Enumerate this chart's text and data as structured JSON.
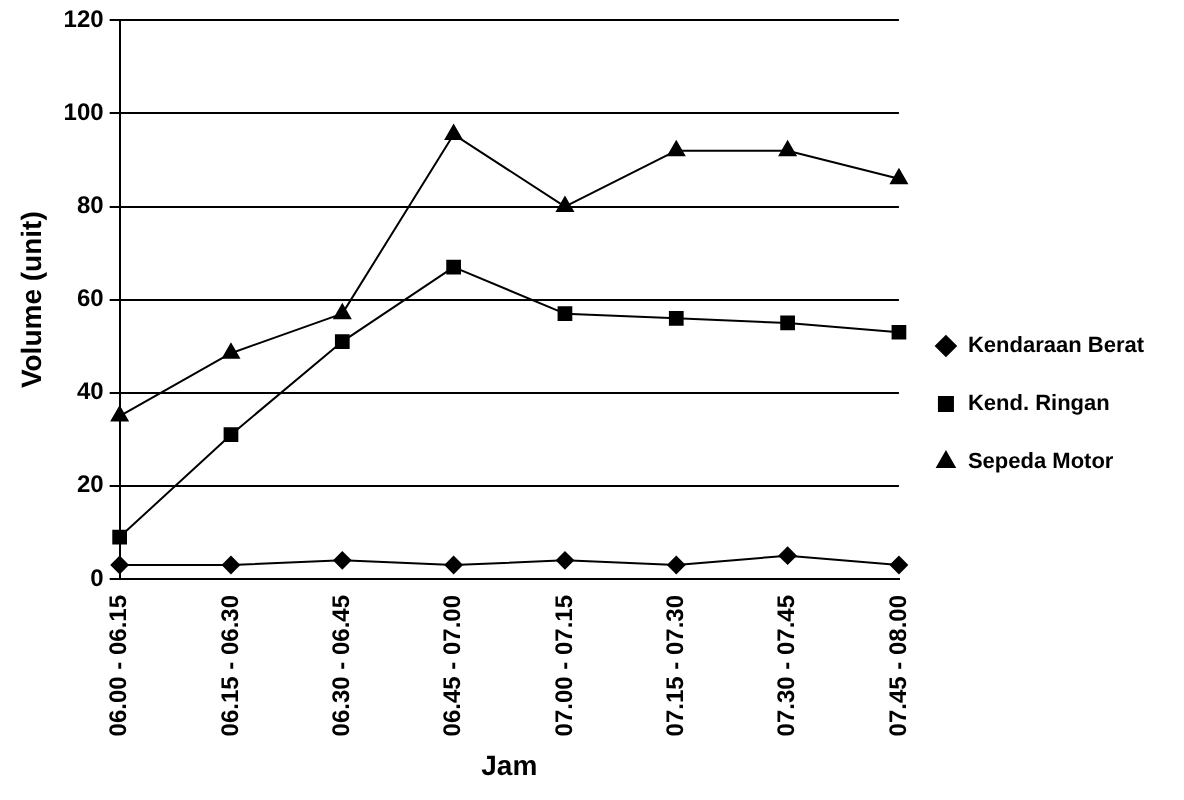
{
  "chart_data": {
    "type": "line",
    "xlabel": "Jam",
    "ylabel": "Volume (unit)",
    "categories": [
      "06.00 - 06.15",
      "06.15 - 06.30",
      "06.30 - 06.45",
      "06.45 - 07.00",
      "07.00 - 07.15",
      "07.15 - 07.30",
      "07.30 - 07.45",
      "07.45 - 08.00"
    ],
    "series": [
      {
        "name": "Kendaraan Berat",
        "color": "#000000",
        "marker": "diamond",
        "values": [
          3,
          3,
          4,
          3,
          4,
          3,
          5,
          3
        ]
      },
      {
        "name": "Kend. Ringan",
        "color": "#000000",
        "marker": "square",
        "values": [
          9,
          31,
          51,
          67,
          57,
          56,
          55,
          53
        ]
      },
      {
        "name": "Sepeda Motor",
        "color": "#000000",
        "marker": "triangle",
        "values": [
          35,
          48.5,
          57,
          95.5,
          80,
          92,
          92,
          86
        ]
      }
    ],
    "ylim": [
      0,
      120
    ],
    "yticks": [
      0,
      20,
      40,
      60,
      80,
      100,
      120
    ],
    "grid": "y",
    "legend": "right",
    "line_style": "solid"
  }
}
